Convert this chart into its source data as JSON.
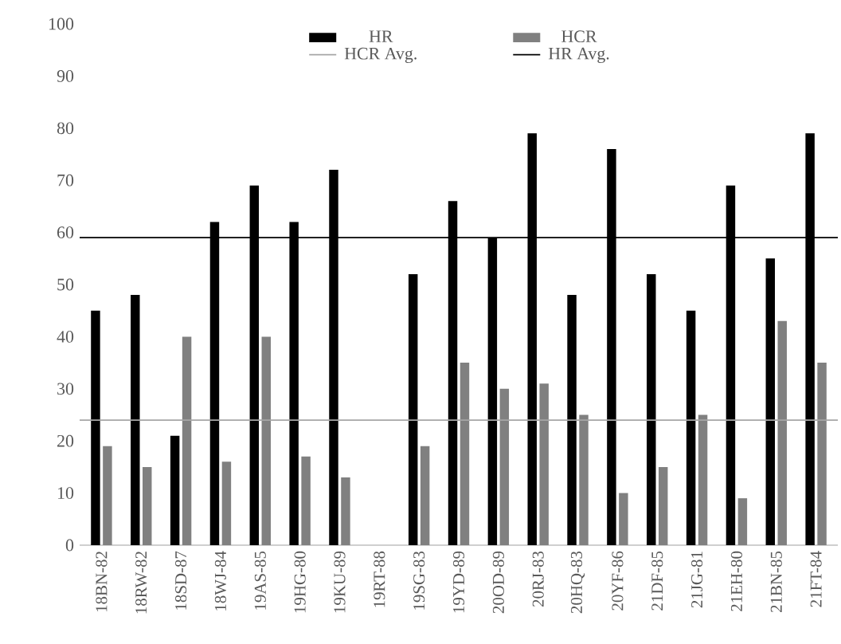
{
  "chart_data": {
    "type": "bar",
    "categories": [
      "18BN-82",
      "18RW-82",
      "18SD-87",
      "18WJ-84",
      "19AS-85",
      "19HG-80",
      "19KU-89",
      "19RT-88",
      "19SG-83",
      "19YD-89",
      "20OD-89",
      "20RJ-83",
      "20HQ-83",
      "20YF-86",
      "21DF-85",
      "21JG-81",
      "21EH-80",
      "21BN-85",
      "21FT-84"
    ],
    "series": [
      {
        "name": "HR",
        "color": "#000000",
        "values": [
          45,
          48,
          21,
          62,
          69,
          62,
          72,
          null,
          52,
          66,
          59,
          79,
          48,
          76,
          52,
          45,
          69,
          55,
          79
        ]
      },
      {
        "name": "HCR",
        "color": "#808080",
        "values": [
          19,
          15,
          40,
          16,
          40,
          17,
          13,
          null,
          19,
          35,
          30,
          31,
          25,
          10,
          15,
          25,
          9,
          43,
          35
        ]
      }
    ],
    "ref_lines": [
      {
        "axis": "y",
        "value": 24,
        "label": "HCR Avg.",
        "color": "#a6a6a6"
      },
      {
        "axis": "y",
        "value": 59,
        "label": "HR Avg.",
        "color": "#000000"
      }
    ],
    "ylim": [
      0,
      100
    ],
    "yticks": [
      0,
      10,
      20,
      30,
      40,
      50,
      60,
      70,
      80,
      90,
      100
    ],
    "grid": false,
    "legend": "top"
  }
}
